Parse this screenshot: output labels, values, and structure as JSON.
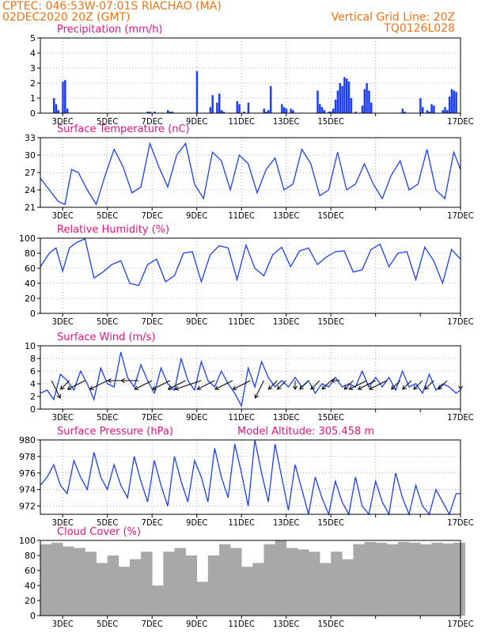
{
  "header": {
    "line1": "CPTEC:   046:53W-07:01S   RIACHAO  (MA)",
    "line2": "02DEC2020 20Z (GMT)",
    "grid_note": "Vertical Grid Line: 20Z",
    "code": "TQ0126L028"
  },
  "colors": {
    "header": "#e8741c",
    "title": "#e0157a",
    "series": "#1e3ef0",
    "cloud": "#a8a8a8",
    "arrow": "#000000"
  },
  "chart_data": [
    {
      "id": "precip",
      "type": "bar",
      "title": "Precipitation (mm/h)",
      "xlabels": [
        "3DEC",
        "5DEC",
        "7DEC",
        "9DEC",
        "11DEC",
        "13DEC",
        "15DEC",
        "17DEC"
      ],
      "ylim": [
        0,
        5
      ],
      "yticks": [
        0,
        1,
        2,
        3,
        4,
        5
      ],
      "grid": true,
      "x": [
        0.6,
        0.7,
        0.8,
        1.0,
        1.1,
        1.2,
        4.8,
        4.9,
        5.1,
        5.7,
        5.8,
        5.9,
        7.0,
        7.6,
        7.7,
        7.9,
        8.0,
        8.1,
        8.2,
        8.8,
        8.9,
        9.1,
        9.3,
        10.0,
        10.1,
        10.2,
        10.3,
        10.8,
        10.9,
        11.0,
        11.2,
        11.3,
        12.4,
        12.5,
        12.6,
        12.7,
        12.9,
        13.0,
        13.1,
        13.2,
        13.3,
        13.4,
        13.5,
        13.6,
        13.7,
        13.8,
        13.9,
        14.1,
        14.4,
        14.5,
        14.6,
        14.7,
        14.8,
        16.2,
        16.3,
        17.0,
        17.1,
        17.3,
        17.4,
        17.5,
        17.6,
        18.0,
        18.1,
        18.2,
        18.3,
        18.4,
        18.5,
        18.6
      ],
      "y": [
        1.0,
        0.6,
        0.2,
        2.1,
        2.2,
        0.3,
        0.1,
        0.1,
        0.1,
        0.2,
        0.1,
        0.1,
        2.8,
        0.4,
        1.2,
        0.7,
        1.3,
        0.2,
        0.1,
        0.8,
        0.6,
        0.1,
        0.7,
        0.3,
        0.1,
        0.2,
        1.8,
        0.6,
        0.4,
        0.3,
        0.3,
        0.2,
        1.5,
        0.6,
        0.4,
        0.2,
        0.1,
        0.1,
        0.3,
        0.9,
        1.5,
        2.0,
        1.8,
        2.4,
        2.3,
        2.1,
        1.0,
        0.1,
        0.5,
        1.6,
        2.0,
        1.5,
        0.7,
        0.3,
        0.1,
        1.0,
        0.4,
        0.2,
        0.1,
        0.6,
        0.5,
        0.2,
        0.4,
        0.2,
        1.1,
        1.6,
        1.5,
        1.4
      ]
    },
    {
      "id": "temp",
      "type": "line",
      "title": "Surface Temperature (nC)",
      "xlabels": [
        "3DEC",
        "5DEC",
        "7DEC",
        "9DEC",
        "11DEC",
        "13DEC",
        "15DEC",
        "17DEC"
      ],
      "ylim": [
        21,
        33
      ],
      "yticks": [
        21,
        24,
        27,
        30,
        33
      ],
      "grid": true,
      "x": [
        0,
        0.4,
        0.8,
        1.1,
        1.4,
        1.7,
        2.1,
        2.5,
        2.9,
        3.3,
        3.7,
        4.1,
        4.5,
        4.9,
        5.3,
        5.7,
        6.1,
        6.5,
        6.9,
        7.3,
        7.7,
        8.1,
        8.5,
        8.9,
        9.3,
        9.7,
        10.1,
        10.5,
        10.9,
        11.3,
        11.7,
        12.1,
        12.5,
        12.9,
        13.3,
        13.7,
        14.1,
        14.5,
        14.9,
        15.3,
        15.7,
        16.1,
        16.5,
        16.9,
        17.3,
        17.7,
        18.1,
        18.5,
        18.8
      ],
      "y": [
        26,
        24,
        22,
        21.5,
        27.5,
        27,
        24,
        21.5,
        26.5,
        31,
        28,
        23.5,
        24.5,
        32,
        28,
        24.5,
        30,
        32,
        25,
        22.5,
        30.5,
        29,
        24,
        30,
        28.5,
        23.5,
        27.5,
        29.5,
        24,
        25,
        31,
        28.5,
        23,
        24,
        30.5,
        24,
        25,
        28.5,
        25,
        22.5,
        26.5,
        29,
        24,
        25,
        31,
        24,
        22.5,
        30.5,
        27.5
      ]
    },
    {
      "id": "rh",
      "type": "line",
      "title": "Relative Humidity (%)",
      "xlabels": [
        "3DEC",
        "5DEC",
        "7DEC",
        "9DEC",
        "11DEC",
        "13DEC",
        "15DEC",
        "17DEC"
      ],
      "ylim": [
        0,
        100
      ],
      "yticks": [
        0,
        20,
        40,
        60,
        80,
        100
      ],
      "grid": true,
      "x": [
        0,
        0.4,
        0.7,
        1.0,
        1.3,
        1.6,
        2.0,
        2.4,
        2.8,
        3.2,
        3.6,
        4.0,
        4.4,
        4.8,
        5.2,
        5.6,
        6.0,
        6.4,
        6.8,
        7.2,
        7.6,
        8.0,
        8.4,
        8.8,
        9.2,
        9.6,
        10.0,
        10.4,
        10.8,
        11.2,
        11.6,
        12.0,
        12.4,
        12.8,
        13.2,
        13.6,
        14.0,
        14.4,
        14.8,
        15.2,
        15.6,
        16.0,
        16.4,
        16.8,
        17.2,
        17.6,
        18.0,
        18.4,
        18.8
      ],
      "y": [
        62,
        80,
        87,
        56,
        87,
        94,
        99,
        47,
        55,
        65,
        70,
        40,
        37,
        65,
        72,
        42,
        50,
        80,
        82,
        42,
        78,
        90,
        87,
        45,
        91,
        60,
        50,
        78,
        88,
        62,
        83,
        87,
        65,
        75,
        82,
        83,
        55,
        58,
        85,
        92,
        62,
        80,
        82,
        45,
        88,
        70,
        40,
        85,
        72
      ]
    },
    {
      "id": "wind",
      "type": "line",
      "title": "Surface Wind (m/s)",
      "xlabels": [
        "3DEC",
        "5DEC",
        "7DEC",
        "9DEC",
        "11DEC",
        "13DEC",
        "15DEC",
        "17DEC"
      ],
      "ylim": [
        0,
        10
      ],
      "yticks": [
        0,
        2,
        4,
        6,
        8,
        10
      ],
      "grid": true,
      "x": [
        0,
        0.3,
        0.6,
        0.9,
        1.2,
        1.5,
        1.8,
        2.1,
        2.4,
        2.7,
        3.0,
        3.3,
        3.6,
        3.9,
        4.2,
        4.5,
        4.8,
        5.1,
        5.4,
        5.7,
        6.0,
        6.3,
        6.6,
        6.9,
        7.2,
        7.5,
        7.8,
        8.1,
        8.4,
        8.7,
        9.0,
        9.3,
        9.6,
        9.9,
        10.2,
        10.5,
        10.8,
        11.1,
        11.4,
        11.7,
        12.0,
        12.3,
        12.6,
        12.9,
        13.2,
        13.5,
        13.8,
        14.1,
        14.4,
        14.7,
        15.0,
        15.3,
        15.6,
        15.9,
        16.2,
        16.5,
        16.8,
        17.1,
        17.4,
        17.7,
        18.0,
        18.3,
        18.6,
        18.8
      ],
      "y": [
        2.5,
        3.0,
        1.5,
        5.5,
        4.5,
        3.0,
        6.0,
        4.0,
        1.5,
        6.5,
        4.0,
        3.5,
        9.0,
        5.0,
        3.5,
        7.0,
        4.5,
        2.5,
        6.5,
        4.0,
        3.0,
        8.0,
        4.5,
        3.0,
        7.5,
        4.5,
        3.5,
        6.0,
        4.0,
        2.5,
        0.5,
        6.5,
        3.5,
        7.5,
        5.0,
        3.5,
        4.5,
        3.5,
        5.0,
        3.5,
        4.5,
        2.5,
        4.0,
        3.5,
        5.0,
        3.5,
        4.0,
        3.5,
        6.0,
        3.5,
        5.0,
        3.5,
        5.0,
        3.0,
        6.0,
        3.5,
        4.0,
        2.5,
        5.5,
        3.0,
        4.0,
        3.5,
        2.5,
        3.0
      ],
      "vectors_x": [
        0.5,
        1.3,
        2.0,
        3.0,
        3.8,
        4.4,
        5.0,
        5.8,
        6.5,
        7.2,
        7.8,
        8.6,
        9.4,
        10.0,
        10.6,
        11.0,
        11.4,
        12.0,
        12.5,
        13.0,
        13.4,
        14.0,
        14.6,
        15.0,
        15.5,
        16.1,
        16.6,
        17.1,
        17.6,
        18.2,
        18.8
      ],
      "vectors_u": [
        1,
        -1,
        -2,
        -2,
        -2,
        -2,
        -2,
        -2,
        -2,
        -3,
        -2,
        -2,
        -2,
        -1,
        -1,
        -1,
        0,
        -1,
        -1,
        -1,
        -1,
        -1,
        -2,
        -2,
        -2,
        -1,
        -1,
        -1,
        -1,
        -1,
        0
      ],
      "vectors_v": [
        -2,
        -1,
        -1,
        -1,
        0,
        0,
        -1,
        -1,
        -1,
        -1,
        -1,
        -1,
        -1,
        -2,
        -1,
        -1,
        -1,
        -1,
        -1,
        -1,
        0,
        -1,
        -1,
        -1,
        -1,
        -1,
        -1,
        -1,
        -1,
        -1,
        -1
      ]
    },
    {
      "id": "press",
      "type": "line",
      "title": "Surface Pressure (hPa)",
      "subtitle": "Model Altitude: 305.458  m",
      "xlabels": [
        "3DEC",
        "5DEC",
        "7DEC",
        "9DEC",
        "11DEC",
        "13DEC",
        "15DEC",
        "17DEC"
      ],
      "ylim": [
        971,
        980
      ],
      "yticks": [
        972,
        974,
        976,
        978,
        980
      ],
      "grid": true,
      "x": [
        0,
        0.3,
        0.6,
        0.9,
        1.2,
        1.5,
        1.8,
        2.1,
        2.4,
        2.7,
        3.0,
        3.3,
        3.6,
        3.9,
        4.2,
        4.5,
        4.8,
        5.1,
        5.4,
        5.7,
        6.0,
        6.3,
        6.6,
        6.9,
        7.2,
        7.5,
        7.8,
        8.1,
        8.4,
        8.7,
        9.0,
        9.3,
        9.6,
        9.9,
        10.2,
        10.5,
        10.8,
        11.1,
        11.4,
        11.7,
        12.0,
        12.3,
        12.6,
        12.9,
        13.2,
        13.5,
        13.8,
        14.1,
        14.4,
        14.7,
        15.0,
        15.3,
        15.6,
        15.9,
        16.2,
        16.5,
        16.8,
        17.1,
        17.4,
        17.7,
        18.0,
        18.3,
        18.6,
        18.8
      ],
      "y": [
        974.5,
        975.5,
        977,
        974.5,
        973.5,
        977.5,
        975.5,
        974,
        978.5,
        975.5,
        974,
        977,
        974.5,
        973,
        978,
        975,
        972.5,
        977.5,
        974.5,
        972,
        978,
        975,
        972.5,
        977.5,
        975.5,
        972.5,
        979,
        975.5,
        973,
        979.5,
        976,
        972,
        980,
        976,
        972.5,
        979.5,
        975.5,
        971.5,
        977,
        974,
        971,
        975.5,
        973,
        971,
        975,
        972.5,
        971,
        975.5,
        972,
        971,
        975,
        972.5,
        971,
        976,
        973,
        971,
        974.5,
        972,
        971,
        974,
        972.5,
        971,
        973.5,
        973.5
      ]
    },
    {
      "id": "cloud",
      "type": "bar",
      "title": "Cloud Cover (%)",
      "xlabels": [
        "3DEC",
        "5DEC",
        "7DEC",
        "9DEC",
        "11DEC",
        "13DEC",
        "15DEC",
        "17DEC"
      ],
      "ylim": [
        0,
        100
      ],
      "yticks": [
        0,
        20,
        40,
        60,
        80,
        100
      ],
      "grid": false,
      "x": [
        0,
        0.5,
        1.0,
        1.5,
        2.0,
        2.5,
        3.0,
        3.5,
        4.0,
        4.5,
        5.0,
        5.5,
        6.0,
        6.5,
        7.0,
        7.5,
        8.0,
        8.5,
        9.0,
        9.5,
        10.0,
        10.5,
        11.0,
        11.5,
        12.0,
        12.5,
        13.0,
        13.5,
        14.0,
        14.5,
        15.0,
        15.5,
        16.0,
        16.5,
        17.0,
        17.5,
        18.0,
        18.5
      ],
      "y": [
        95,
        97,
        92,
        90,
        85,
        70,
        80,
        65,
        75,
        85,
        40,
        85,
        90,
        80,
        45,
        80,
        95,
        90,
        65,
        70,
        95,
        100,
        90,
        88,
        85,
        70,
        85,
        75,
        95,
        98,
        97,
        95,
        98,
        97,
        95,
        97,
        96,
        97
      ]
    }
  ]
}
